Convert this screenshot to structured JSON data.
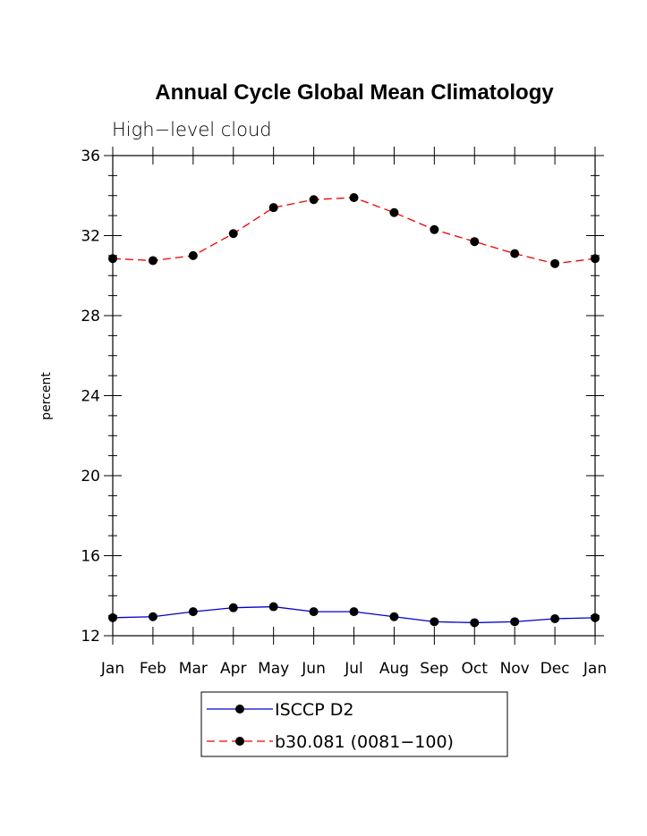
{
  "chart_data": {
    "type": "line",
    "title": "Annual Cycle Global Mean Climatology",
    "subtitle": "High−level cloud",
    "xlabel": "",
    "ylabel": "percent",
    "ylim": [
      12,
      36
    ],
    "yticks": [
      "12",
      "16",
      "20",
      "24",
      "28",
      "32",
      "36"
    ],
    "categories": [
      "Jan",
      "Feb",
      "Mar",
      "Apr",
      "May",
      "Jun",
      "Jul",
      "Aug",
      "Sep",
      "Oct",
      "Nov",
      "Dec",
      "Jan"
    ],
    "grid": false,
    "legend_position": "bottom-center",
    "series": [
      {
        "name": "ISCCP D2",
        "color": "#0000cc",
        "dash": "solid",
        "values": [
          12.9,
          12.95,
          13.2,
          13.4,
          13.45,
          13.2,
          13.2,
          12.95,
          12.7,
          12.65,
          12.7,
          12.85,
          12.9
        ]
      },
      {
        "name": "b30.081 (0081−100)",
        "color": "#ee0000",
        "dash": "dashed",
        "values": [
          30.85,
          30.75,
          31.0,
          32.1,
          33.4,
          33.8,
          33.9,
          33.15,
          32.3,
          31.7,
          31.1,
          30.6,
          30.85
        ]
      }
    ]
  }
}
